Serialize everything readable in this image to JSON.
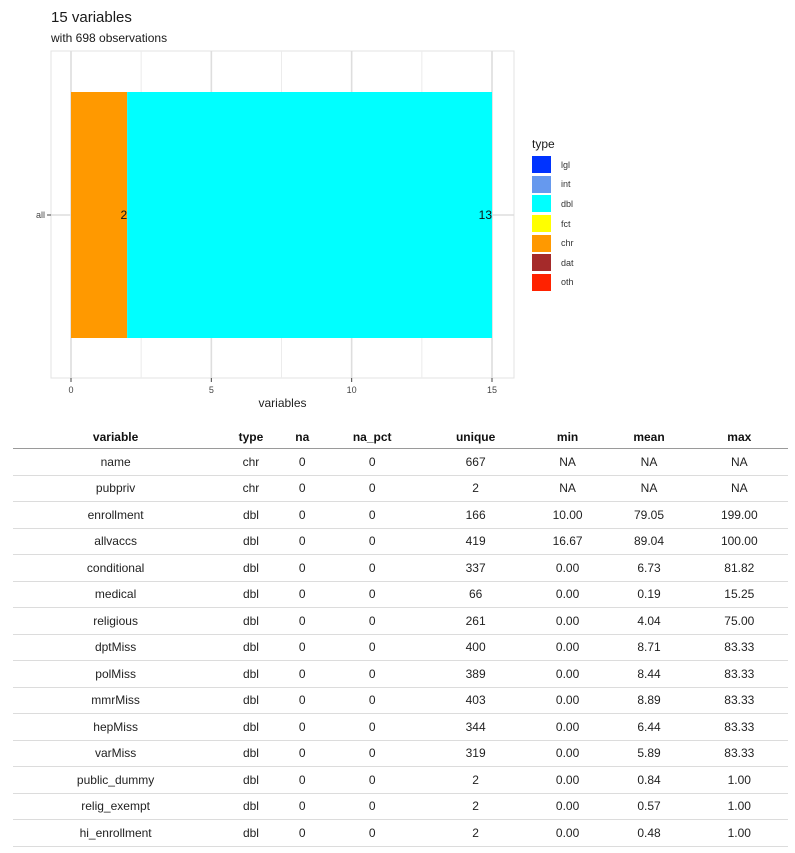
{
  "title": "15 variables",
  "subtitle": "with 698 observations",
  "chart_data": {
    "type": "bar",
    "orientation": "horizontal",
    "stacked": true,
    "categories": [
      "all"
    ],
    "series": [
      {
        "name": "chr",
        "values": [
          2
        ],
        "color": "#FF9900"
      },
      {
        "name": "dbl",
        "values": [
          13
        ],
        "color": "#00FFFF"
      }
    ],
    "data_labels": [
      "2",
      "13"
    ],
    "xlabel": "variables",
    "ylabel": "",
    "xticks": [
      "0",
      "5",
      "10",
      "15"
    ],
    "xlim": [
      0,
      15
    ],
    "grid": true,
    "legend": {
      "title": "type",
      "position": "right",
      "entries": [
        {
          "label": "lgl",
          "color": "#0033FF"
        },
        {
          "label": "int",
          "color": "#6699EE"
        },
        {
          "label": "dbl",
          "color": "#00FFFF"
        },
        {
          "label": "fct",
          "color": "#FFFF00"
        },
        {
          "label": "chr",
          "color": "#FF9900"
        },
        {
          "label": "dat",
          "color": "#A52A2A"
        },
        {
          "label": "oth",
          "color": "#FF2200"
        }
      ]
    }
  },
  "table": {
    "columns": [
      "variable",
      "type",
      "na",
      "na_pct",
      "unique",
      "min",
      "mean",
      "max"
    ],
    "rows": [
      [
        "name",
        "chr",
        "0",
        "0",
        "667",
        "NA",
        "NA",
        "NA"
      ],
      [
        "pubpriv",
        "chr",
        "0",
        "0",
        "2",
        "NA",
        "NA",
        "NA"
      ],
      [
        "enrollment",
        "dbl",
        "0",
        "0",
        "166",
        "10.00",
        "79.05",
        "199.00"
      ],
      [
        "allvaccs",
        "dbl",
        "0",
        "0",
        "419",
        "16.67",
        "89.04",
        "100.00"
      ],
      [
        "conditional",
        "dbl",
        "0",
        "0",
        "337",
        "0.00",
        "6.73",
        "81.82"
      ],
      [
        "medical",
        "dbl",
        "0",
        "0",
        "66",
        "0.00",
        "0.19",
        "15.25"
      ],
      [
        "religious",
        "dbl",
        "0",
        "0",
        "261",
        "0.00",
        "4.04",
        "75.00"
      ],
      [
        "dptMiss",
        "dbl",
        "0",
        "0",
        "400",
        "0.00",
        "8.71",
        "83.33"
      ],
      [
        "polMiss",
        "dbl",
        "0",
        "0",
        "389",
        "0.00",
        "8.44",
        "83.33"
      ],
      [
        "mmrMiss",
        "dbl",
        "0",
        "0",
        "403",
        "0.00",
        "8.89",
        "83.33"
      ],
      [
        "hepMiss",
        "dbl",
        "0",
        "0",
        "344",
        "0.00",
        "6.44",
        "83.33"
      ],
      [
        "varMiss",
        "dbl",
        "0",
        "0",
        "319",
        "0.00",
        "5.89",
        "83.33"
      ],
      [
        "public_dummy",
        "dbl",
        "0",
        "0",
        "2",
        "0.00",
        "0.84",
        "1.00"
      ],
      [
        "relig_exempt",
        "dbl",
        "0",
        "0",
        "2",
        "0.00",
        "0.57",
        "1.00"
      ],
      [
        "hi_enrollment",
        "dbl",
        "0",
        "0",
        "2",
        "0.00",
        "0.48",
        "1.00"
      ]
    ]
  }
}
